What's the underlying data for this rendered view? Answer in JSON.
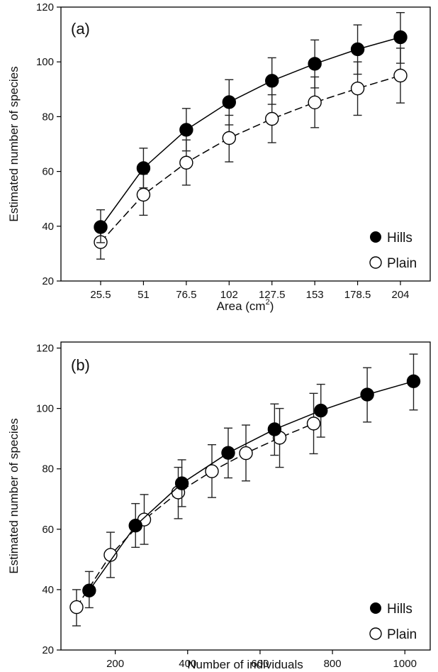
{
  "chart_data": [
    {
      "type": "line",
      "panel_label": "(a)",
      "xlabel": "Area (cm",
      "xlabel_sup": "2",
      "xlabel_end": ")",
      "ylabel": "Estimated number of species",
      "x_scale": "categorical",
      "categories": [
        "25.5",
        "51",
        "76.5",
        "102",
        "127.5",
        "153",
        "178.5",
        "204"
      ],
      "ylim": [
        20,
        120
      ],
      "yticks": [
        20,
        40,
        60,
        80,
        100,
        120
      ],
      "legend_position": "bottom-right",
      "grid": false,
      "series": [
        {
          "name": "Hills",
          "marker": "filled-circle",
          "line_style": "solid",
          "values": [
            39.7,
            61.2,
            75.2,
            85.3,
            93.1,
            99.3,
            104.6,
            109.0
          ],
          "err_low": [
            34,
            54,
            67.5,
            77,
            84.5,
            90.5,
            95.5,
            99.5
          ],
          "err_high": [
            46,
            68.5,
            83,
            93.5,
            101.5,
            108,
            113.5,
            118
          ]
        },
        {
          "name": "Plain",
          "marker": "open-circle",
          "line_style": "dashed",
          "values": [
            34.2,
            51.5,
            63.2,
            72.2,
            79.2,
            85.2,
            90.3,
            95.0
          ],
          "err_low": [
            28,
            44,
            55,
            63.5,
            70.5,
            76,
            80.5,
            85
          ],
          "err_high": [
            40,
            59,
            71.5,
            80.5,
            88,
            94.5,
            100,
            105
          ]
        }
      ]
    },
    {
      "type": "line",
      "panel_label": "(b)",
      "xlabel": "Number of individuals",
      "ylabel": "Estimated number of species",
      "xlim": [
        50,
        1070
      ],
      "xticks": [
        200,
        400,
        600,
        800,
        1000
      ],
      "ylim": [
        20,
        122
      ],
      "yticks": [
        20,
        40,
        60,
        80,
        100,
        120
      ],
      "legend_position": "bottom-right",
      "grid": false,
      "series": [
        {
          "name": "Hills",
          "marker": "filled-circle",
          "line_style": "solid",
          "x": [
            128,
            256,
            384,
            512,
            640,
            768,
            896,
            1024
          ],
          "values": [
            39.7,
            61.2,
            75.2,
            85.3,
            93.1,
            99.3,
            104.6,
            109.0
          ],
          "err_low": [
            34,
            54,
            67.5,
            77,
            84.5,
            90.5,
            95.5,
            99.5
          ],
          "err_high": [
            46,
            68.5,
            83,
            93.5,
            101.5,
            108,
            113.5,
            118
          ]
        },
        {
          "name": "Plain",
          "marker": "open-circle",
          "line_style": "dashed",
          "x": [
            93,
            187,
            280,
            374,
            467,
            561,
            654,
            748
          ],
          "values": [
            34.2,
            51.5,
            63.2,
            72.2,
            79.2,
            85.2,
            90.3,
            95.0
          ],
          "err_low": [
            28,
            44,
            55,
            63.5,
            70.5,
            76,
            80.5,
            85
          ],
          "err_high": [
            40,
            59,
            71.5,
            80.5,
            88,
            94.5,
            100,
            105
          ]
        }
      ]
    }
  ]
}
